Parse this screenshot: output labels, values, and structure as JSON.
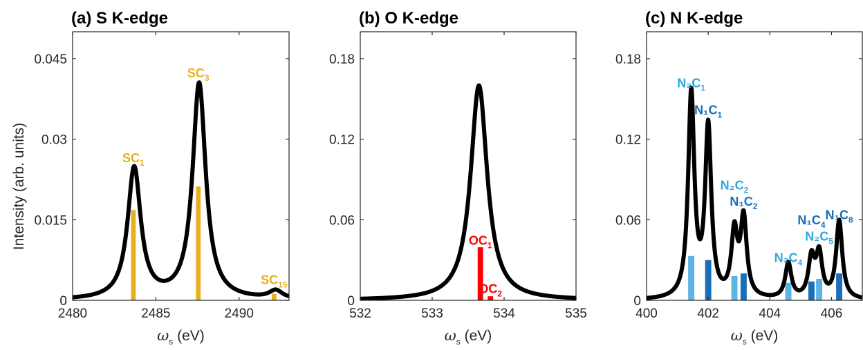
{
  "y_axis_label": "Intensity (arb. units)",
  "chart_data": [
    {
      "type": "line",
      "title": "(a) S K-edge",
      "xlabel_symbol": "ω",
      "xlabel_sub": "s",
      "xlabel_unit": "(eV)",
      "xlim": [
        2480,
        2493
      ],
      "ylim": [
        0,
        0.05
      ],
      "xticks": [
        2480,
        2485,
        2490
      ],
      "yticks": [
        0,
        0.015,
        0.03,
        0.045
      ],
      "ytick_labels": [
        "0",
        "0.015",
        "0.03",
        "0.045"
      ],
      "curve_color": "#000000",
      "peaks": [
        {
          "center": 2483.7,
          "amp": 0.0244,
          "hwhm": 0.48
        },
        {
          "center": 2487.6,
          "amp": 0.0402,
          "hwhm": 0.48
        },
        {
          "center": 2492.2,
          "amp": 0.0015,
          "hwhm": 0.48
        }
      ],
      "sticks": [
        {
          "x": 2483.65,
          "value": 0.0168,
          "color": "#e8b020",
          "label": "SC",
          "sub": "1",
          "label_color": "#e8b020",
          "label_y": 0.0257
        },
        {
          "x": 2487.55,
          "value": 0.0212,
          "color": "#e8b020",
          "label": "SC",
          "sub": "3",
          "label_color": "#e8b020",
          "label_y": 0.0415
        },
        {
          "x": 2492.1,
          "value": 0.0012,
          "color": "#e8b020",
          "label": "SC",
          "sub": "15",
          "label_color": "#e8b020",
          "label_y": 0.003
        }
      ],
      "stick_width_data": 0.28
    },
    {
      "type": "line",
      "title": "(b) O K-edge",
      "xlabel_symbol": "ω",
      "xlabel_sub": "s",
      "xlabel_unit": "(eV)",
      "xlim": [
        532,
        535
      ],
      "ylim": [
        0,
        0.2
      ],
      "xticks": [
        532,
        533,
        534,
        535
      ],
      "yticks": [
        0,
        0.06,
        0.12,
        0.18
      ],
      "ytick_labels": [
        "0",
        "0.06",
        "0.12",
        "0.18"
      ],
      "curve_color": "#000000",
      "peaks": [
        {
          "center": 533.65,
          "amp": 0.16,
          "hwhm": 0.14
        }
      ],
      "sticks": [
        {
          "x": 533.67,
          "value": 0.0395,
          "color": "#ff0000",
          "label": "OC",
          "sub": "1",
          "label_color": "#ff0000",
          "label_y": 0.0415
        },
        {
          "x": 533.81,
          "value": 0.003,
          "color": "#ff0000",
          "label": "OC",
          "sub": "2",
          "label_color": "#ff0000",
          "label_y": 0.0055
        }
      ],
      "stick_width_data": 0.075
    },
    {
      "type": "line",
      "title": "(c) N K-edge",
      "xlabel_symbol": "ω",
      "xlabel_sub": "s",
      "xlabel_unit": "(eV)",
      "xlim": [
        400,
        407
      ],
      "ylim": [
        0,
        0.2
      ],
      "xticks": [
        400,
        402,
        404,
        406
      ],
      "yticks": [
        0,
        0.06,
        0.12,
        0.18
      ],
      "ytick_labels": [
        "0",
        "0.06",
        "0.12",
        "0.18"
      ],
      "curve_color": "#000000",
      "peaks": [
        {
          "center": 401.45,
          "amp": 0.152,
          "hwhm": 0.12
        },
        {
          "center": 402.0,
          "amp": 0.126,
          "hwhm": 0.12
        },
        {
          "center": 402.85,
          "amp": 0.047,
          "hwhm": 0.12
        },
        {
          "center": 403.15,
          "amp": 0.058,
          "hwhm": 0.12
        },
        {
          "center": 404.6,
          "amp": 0.026,
          "hwhm": 0.12
        },
        {
          "center": 405.35,
          "amp": 0.029,
          "hwhm": 0.12
        },
        {
          "center": 405.6,
          "amp": 0.032,
          "hwhm": 0.12
        },
        {
          "center": 406.25,
          "amp": 0.058,
          "hwhm": 0.12
        }
      ],
      "sticks": [
        {
          "x": 401.45,
          "value": 0.033,
          "color": "#5ab4e6",
          "label": "N₂C",
          "sub": "1",
          "label_color": "#2ea8df",
          "label_y": 0.1585
        },
        {
          "x": 402.0,
          "value": 0.03,
          "color": "#1a6fb8",
          "label": "N₁C",
          "sub": "1",
          "label_color": "#1a6fb8",
          "label_y": 0.1385
        },
        {
          "x": 402.85,
          "value": 0.018,
          "color": "#5ab4e6",
          "label": "N₂C",
          "sub": "2",
          "label_color": "#2ea8df",
          "label_y": 0.0825
        },
        {
          "x": 403.15,
          "value": 0.02,
          "color": "#1a6fb8",
          "label": "N₁C",
          "sub": "2",
          "label_color": "#1a6fb8",
          "label_y": 0.0705
        },
        {
          "x": 404.6,
          "value": 0.013,
          "color": "#5ab4e6",
          "label": "N₂C",
          "sub": "4",
          "label_color": "#2ea8df",
          "label_y": 0.0285
        },
        {
          "x": 405.35,
          "value": 0.014,
          "color": "#1a6fb8",
          "label": "N₁C",
          "sub": "4",
          "label_color": "#1a6fb8",
          "label_y": 0.0565
        },
        {
          "x": 405.6,
          "value": 0.016,
          "color": "#5ab4e6",
          "label": "N₂C",
          "sub": "5",
          "label_color": "#2ea8df",
          "label_y": 0.0445
        },
        {
          "x": 406.25,
          "value": 0.02,
          "color": "#1a6fb8",
          "label": "N₁C",
          "sub": "8",
          "label_color": "#1a6fb8",
          "label_y": 0.0605
        }
      ],
      "stick_width_data": 0.2
    }
  ]
}
